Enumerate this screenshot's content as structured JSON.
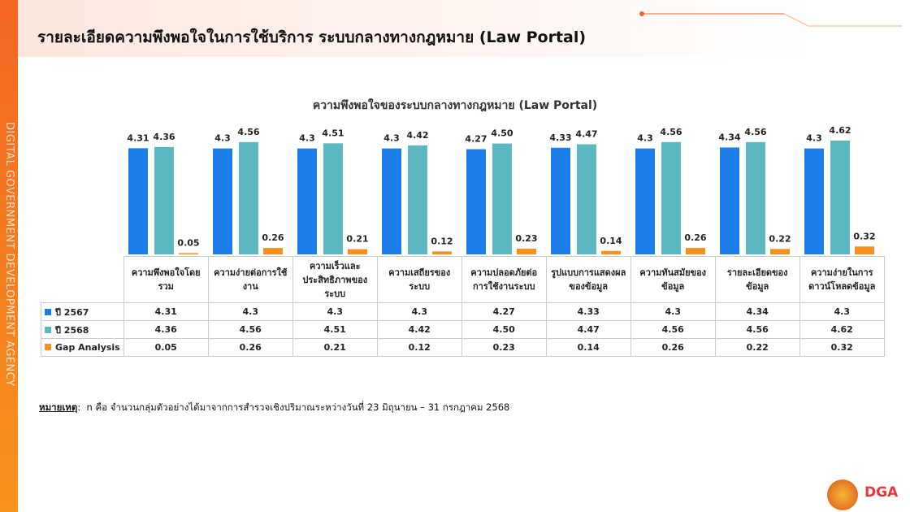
{
  "header": {
    "title": "รายละเอียดความพึงพอใจในการใช้บริการ ระบบกลางทางกฎหมาย (Law Portal)"
  },
  "side_text": "DIGITAL GOVERNMENT DEVELOPMENT AGENCY",
  "chart_data": {
    "type": "bar",
    "title": "ความพึงพอใจของระบบกลางทางกฎหมาย (Law Portal)",
    "categories": [
      "ความพึงพอใจโดยรวม",
      "ความง่ายต่อการใช้งาน",
      "ความเร็วและประสิทธิภาพของระบบ",
      "ความเสถียรของระบบ",
      "ความปลอดภัยต่อการใช้งานระบบ",
      "รูปแบบการแสดงผลของข้อมูล",
      "ความทันสมัยของข้อมูล",
      "รายละเอียดของข้อมูล",
      "ความง่ายในการดาวน์โหลดข้อมูล"
    ],
    "series": [
      {
        "name": "ปี 2567",
        "color": "#1a7fe8",
        "values": [
          4.31,
          4.3,
          4.3,
          4.3,
          4.27,
          4.33,
          4.3,
          4.34,
          4.3
        ]
      },
      {
        "name": "ปี 2568",
        "color": "#5bb8c0",
        "values": [
          4.36,
          4.56,
          4.51,
          4.42,
          4.5,
          4.47,
          4.56,
          4.56,
          4.62
        ],
        "value_labels": [
          "4.36",
          "4.56",
          "4.51",
          "4.42",
          "4.50",
          "4.47",
          "4.56",
          "4.56",
          "4.62"
        ]
      },
      {
        "name": "Gap Analysis",
        "color": "#f7901e",
        "values": [
          0.05,
          0.26,
          0.21,
          0.12,
          0.23,
          0.14,
          0.26,
          0.22,
          0.32
        ]
      }
    ]
  },
  "note": {
    "label": "หมายเหตุ",
    "text": "n คือ จำนวนกลุ่มตัวอย่างได้มาจากการสำรวจเชิงปริมาณระหว่างวันที่ 23 มิถุนายน – 31 กรกฎาคม 2568"
  },
  "logo": "DGA"
}
